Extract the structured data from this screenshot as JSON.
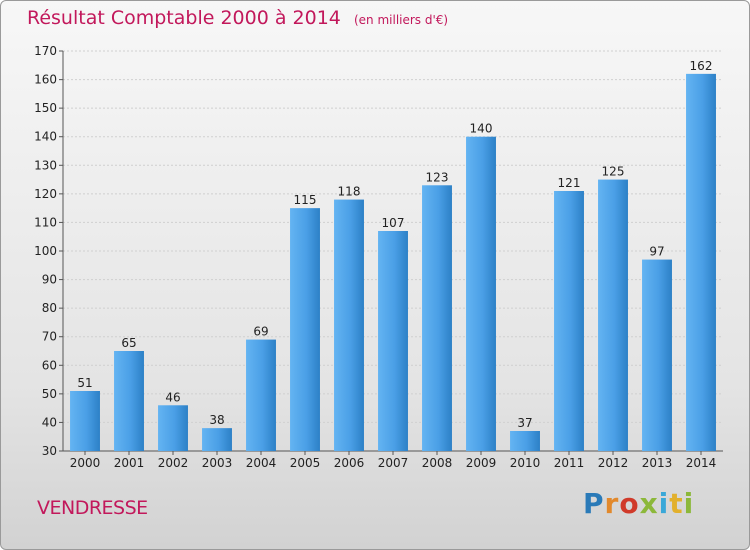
{
  "header": {
    "title": "Résultat Comptable 2000 à 2014",
    "subtitle": "(en milliers d'€)"
  },
  "commune": "VENDRESSE",
  "logo": {
    "text": "Proxiti"
  },
  "chart_data": {
    "type": "bar",
    "title": "Résultat Comptable 2000 à 2014",
    "subtitle": "(en milliers d'€)",
    "xlabel": "",
    "ylabel": "",
    "categories": [
      "2000",
      "2001",
      "2002",
      "2003",
      "2004",
      "2005",
      "2006",
      "2007",
      "2008",
      "2009",
      "2010",
      "2011",
      "2012",
      "2013",
      "2014"
    ],
    "values": [
      51,
      65,
      46,
      38,
      69,
      115,
      118,
      107,
      123,
      140,
      37,
      121,
      125,
      97,
      162
    ],
    "ylim": [
      30,
      170
    ],
    "yticks": [
      30,
      40,
      50,
      60,
      70,
      80,
      90,
      100,
      110,
      120,
      130,
      140,
      150,
      160,
      170
    ],
    "grid": true,
    "legend": "none",
    "colors": {
      "bar_light": "#5aaef0",
      "bar_dark": "#2a7fc4",
      "grid": "#cfcfcf",
      "axis": "#555555"
    }
  }
}
